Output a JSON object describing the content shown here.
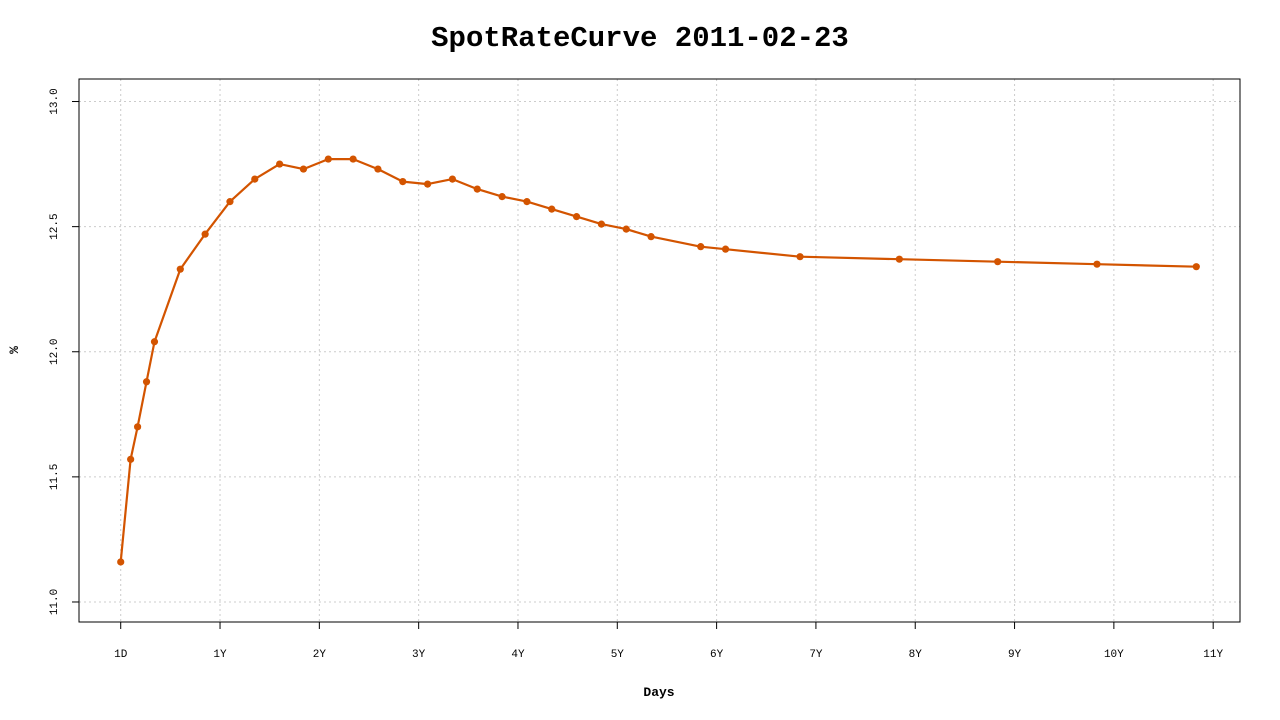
{
  "chart_data": {
    "type": "line",
    "title": "SpotRateCurve 2011-02-23",
    "xlabel": "Days",
    "ylabel": "%",
    "x_ticks": [
      {
        "label": "1D",
        "x": 0.0
      },
      {
        "label": "1Y",
        "x": 1.0
      },
      {
        "label": "2Y",
        "x": 2.0
      },
      {
        "label": "3Y",
        "x": 3.0
      },
      {
        "label": "4Y",
        "x": 4.0
      },
      {
        "label": "5Y",
        "x": 5.0
      },
      {
        "label": "6Y",
        "x": 6.0
      },
      {
        "label": "7Y",
        "x": 7.0
      },
      {
        "label": "8Y",
        "x": 8.0
      },
      {
        "label": "9Y",
        "x": 9.0
      },
      {
        "label": "10Y",
        "x": 10.0
      },
      {
        "label": "11Y",
        "x": 11.0
      }
    ],
    "y_ticks": [
      "11.0",
      "11.5",
      "12.0",
      "12.5",
      "13.0"
    ],
    "xlim": [
      -0.42,
      11.27
    ],
    "ylim": [
      10.92,
      13.09
    ],
    "grid": true,
    "line_color": "#d35400",
    "series": [
      {
        "values": [
          {
            "x": 0.0,
            "y": 11.16
          },
          {
            "x": 0.1,
            "y": 11.57
          },
          {
            "x": 0.17,
            "y": 11.7
          },
          {
            "x": 0.26,
            "y": 11.88
          },
          {
            "x": 0.34,
            "y": 12.04
          },
          {
            "x": 0.6,
            "y": 12.33
          },
          {
            "x": 0.85,
            "y": 12.47
          },
          {
            "x": 1.1,
            "y": 12.6
          },
          {
            "x": 1.35,
            "y": 12.69
          },
          {
            "x": 1.6,
            "y": 12.75
          },
          {
            "x": 1.84,
            "y": 12.73
          },
          {
            "x": 2.09,
            "y": 12.77
          },
          {
            "x": 2.34,
            "y": 12.77
          },
          {
            "x": 2.59,
            "y": 12.73
          },
          {
            "x": 2.84,
            "y": 12.68
          },
          {
            "x": 3.09,
            "y": 12.67
          },
          {
            "x": 3.34,
            "y": 12.69
          },
          {
            "x": 3.59,
            "y": 12.65
          },
          {
            "x": 3.84,
            "y": 12.62
          },
          {
            "x": 4.09,
            "y": 12.6
          },
          {
            "x": 4.34,
            "y": 12.57
          },
          {
            "x": 4.59,
            "y": 12.54
          },
          {
            "x": 4.84,
            "y": 12.51
          },
          {
            "x": 5.09,
            "y": 12.49
          },
          {
            "x": 5.34,
            "y": 12.46
          },
          {
            "x": 5.84,
            "y": 12.42
          },
          {
            "x": 6.09,
            "y": 12.41
          },
          {
            "x": 6.84,
            "y": 12.38
          },
          {
            "x": 7.84,
            "y": 12.37
          },
          {
            "x": 8.83,
            "y": 12.36
          },
          {
            "x": 9.83,
            "y": 12.35
          },
          {
            "x": 10.83,
            "y": 12.34
          }
        ]
      }
    ]
  }
}
